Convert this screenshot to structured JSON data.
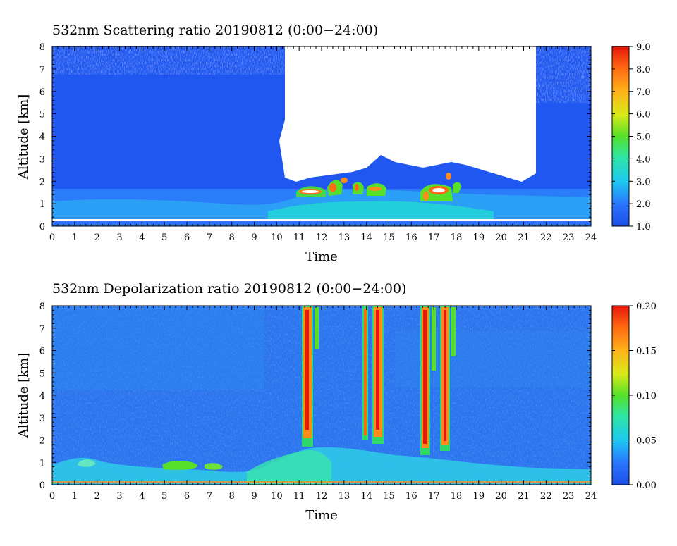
{
  "chart_data": [
    {
      "type": "heatmap",
      "title": "532nm Scattering ratio  20190812 (0:00−24:00)",
      "xlabel": "Time",
      "ylabel": "Altitude [km]",
      "xlim": [
        0,
        24
      ],
      "ylim": [
        0,
        8
      ],
      "x_ticks": [
        "0",
        "1",
        "2",
        "3",
        "4",
        "5",
        "6",
        "7",
        "8",
        "9",
        "10",
        "11",
        "12",
        "13",
        "14",
        "15",
        "16",
        "17",
        "18",
        "19",
        "20",
        "21",
        "22",
        "23",
        "24"
      ],
      "y_ticks": [
        "0",
        "1",
        "2",
        "3",
        "4",
        "5",
        "6",
        "7",
        "8"
      ],
      "colorbar": {
        "min": 1.0,
        "max": 9.0,
        "ticks": [
          "1.0",
          "2.0",
          "3.0",
          "4.0",
          "5.0",
          "6.0",
          "7.0",
          "8.0",
          "9.0"
        ]
      },
      "features": {
        "boundary_layer_top_km": 1.7,
        "cloud_layer_km": [
          1.5,
          2.3
        ],
        "cloud_hours": [
          11,
          18.2
        ],
        "no_signal_above_cloud_hours": [
          10.3,
          21.0
        ],
        "no_signal_upper_hours": [
          [
            0,
            10.5
          ],
          [
            21.5,
            24
          ]
        ]
      }
    },
    {
      "type": "heatmap",
      "title": "532nm Depolarization ratio  20190812 (0:00−24:00)",
      "xlabel": "Time",
      "ylabel": "Altitude [km]",
      "xlim": [
        0,
        24
      ],
      "ylim": [
        0,
        8
      ],
      "x_ticks": [
        "0",
        "1",
        "2",
        "3",
        "4",
        "5",
        "6",
        "7",
        "8",
        "9",
        "10",
        "11",
        "12",
        "13",
        "14",
        "15",
        "16",
        "17",
        "18",
        "19",
        "20",
        "21",
        "22",
        "23",
        "24"
      ],
      "y_ticks": [
        "0",
        "1",
        "2",
        "3",
        "4",
        "5",
        "6",
        "7",
        "8"
      ],
      "colorbar": {
        "min": 0.0,
        "max": 0.2,
        "ticks": [
          "0.00",
          "0.05",
          "0.10",
          "0.15",
          "0.20"
        ]
      },
      "features": {
        "high_depol_columns_hours": [
          [
            11.2,
            11.7
          ],
          [
            13.9,
            14.1
          ],
          [
            14.3,
            14.6
          ],
          [
            16.4,
            16.7
          ],
          [
            17.3,
            17.6
          ]
        ],
        "high_depol_altitude_km": [
          1.8,
          8.0
        ],
        "enhanced_near_surface_hours": [
          9,
          12
        ]
      }
    }
  ]
}
